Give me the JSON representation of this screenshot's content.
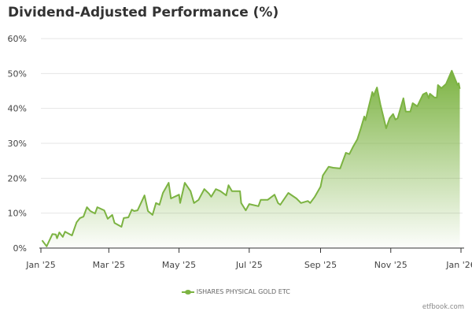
{
  "chart_data": {
    "type": "area",
    "title": "Dividend-Adjusted Performance (%)",
    "xlabel": "",
    "ylabel": "",
    "x_unit": "days since Jan 1 2025",
    "xlim": [
      0,
      365
    ],
    "ylim": [
      0,
      60
    ],
    "grid": true,
    "yticks": [
      0,
      10,
      20,
      30,
      40,
      50,
      60
    ],
    "ytick_labels": [
      "0%",
      "10%",
      "20%",
      "30%",
      "40%",
      "50%",
      "60%"
    ],
    "xticks": [
      0,
      59,
      120,
      181,
      243,
      304,
      365
    ],
    "xtick_labels": [
      "Jan '25",
      "Mar '25",
      "May '25",
      "Jul '25",
      "Sep '25",
      "Nov '25",
      "Jan '26"
    ],
    "legend_position": "bottom",
    "color": "#7cb342",
    "series": [
      {
        "name": "ISHARES PHYSICAL GOLD ETC",
        "x": [
          1,
          5,
          10,
          13,
          14,
          16,
          19,
          21,
          27,
          31,
          34,
          37,
          40,
          43,
          47,
          49,
          55,
          58,
          62,
          64,
          70,
          72,
          76,
          79,
          81,
          84,
          90,
          93,
          97,
          100,
          103,
          106,
          111,
          113,
          120,
          121,
          125,
          130,
          133,
          137,
          142,
          146,
          148,
          152,
          156,
          161,
          163,
          166,
          170,
          173,
          174,
          178,
          181,
          189,
          191,
          197,
          203,
          206,
          208,
          215,
          222,
          226,
          232,
          234,
          238,
          243,
          245,
          250,
          254,
          260,
          265,
          268,
          271,
          275,
          278,
          281,
          282,
          288,
          289,
          292,
          295,
          300,
          303,
          306,
          308,
          310,
          315,
          317,
          321,
          323,
          327,
          332,
          335,
          337,
          338,
          342,
          344,
          345,
          348,
          352,
          357,
          362,
          363,
          364
        ],
        "values": [
          2.2,
          0.5,
          4,
          3.9,
          2.8,
          4.5,
          3.2,
          4.7,
          3.6,
          7.4,
          8.6,
          9,
          11.7,
          10.6,
          9.9,
          11.7,
          10.8,
          8.4,
          9.5,
          7.2,
          6.1,
          8.6,
          8.8,
          11,
          10.6,
          10.8,
          15.1,
          10.6,
          9.5,
          12.9,
          12.4,
          15.8,
          18.7,
          14.2,
          15.3,
          12.9,
          18.7,
          16.3,
          12.9,
          13.8,
          16.9,
          15.6,
          14.7,
          16.9,
          16.3,
          15.1,
          18,
          16.3,
          16.3,
          16.3,
          12.9,
          10.8,
          12.6,
          12,
          13.8,
          13.8,
          15.3,
          12.9,
          12.4,
          15.8,
          14.2,
          12.9,
          13.5,
          12.9,
          14.7,
          17.6,
          20.8,
          23.3,
          23,
          22.8,
          27.3,
          26.9,
          28.9,
          31.2,
          34.3,
          37.7,
          36.6,
          44.7,
          43.6,
          46,
          41.1,
          34.3,
          37.2,
          38.4,
          36.8,
          37.2,
          42.9,
          39.1,
          39.1,
          41.5,
          40.6,
          44,
          44.5,
          42.9,
          44.2,
          43.1,
          43.1,
          46.7,
          45.8,
          47,
          50.8,
          46.7,
          47.2,
          45.6
        ]
      }
    ],
    "credit": "etfbook.com"
  }
}
